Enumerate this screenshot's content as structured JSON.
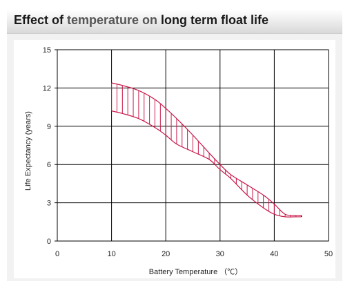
{
  "header": {
    "title_part1": "Effect of ",
    "title_part2": "temperature on ",
    "title_part3": "long term float life"
  },
  "chart_data": {
    "type": "area",
    "title": "Effect of temperature on long term float life",
    "xlabel": "Battery Temperature （℃）",
    "ylabel": "Life Expectancy (years)",
    "xlim": [
      0,
      50
    ],
    "ylim": [
      0,
      15
    ],
    "xticks": [
      0,
      10,
      20,
      30,
      40,
      50
    ],
    "yticks": [
      0,
      3,
      6,
      9,
      12,
      15
    ],
    "grid": true,
    "series": [
      {
        "x": [
          10,
          12,
          15,
          18,
          20,
          22,
          25,
          28,
          30,
          32,
          35,
          38,
          40,
          42,
          44,
          45
        ],
        "values": [
          12.4,
          12.2,
          11.8,
          11.1,
          10.4,
          9.6,
          8.3,
          6.9,
          6.0,
          5.2,
          4.4,
          3.6,
          2.9,
          2.1,
          2.0,
          2.0
        ]
      },
      {
        "x": [
          10,
          12,
          15,
          18,
          20,
          22,
          25,
          28,
          30,
          32,
          35,
          38,
          40,
          42,
          44,
          45
        ],
        "values": [
          10.2,
          10.0,
          9.6,
          8.9,
          8.3,
          7.6,
          7.0,
          6.4,
          5.6,
          4.9,
          3.6,
          2.6,
          2.1,
          1.9,
          1.9,
          1.9
        ]
      }
    ],
    "colors": {
      "band": "#c8184a",
      "grid": "#000000"
    }
  }
}
